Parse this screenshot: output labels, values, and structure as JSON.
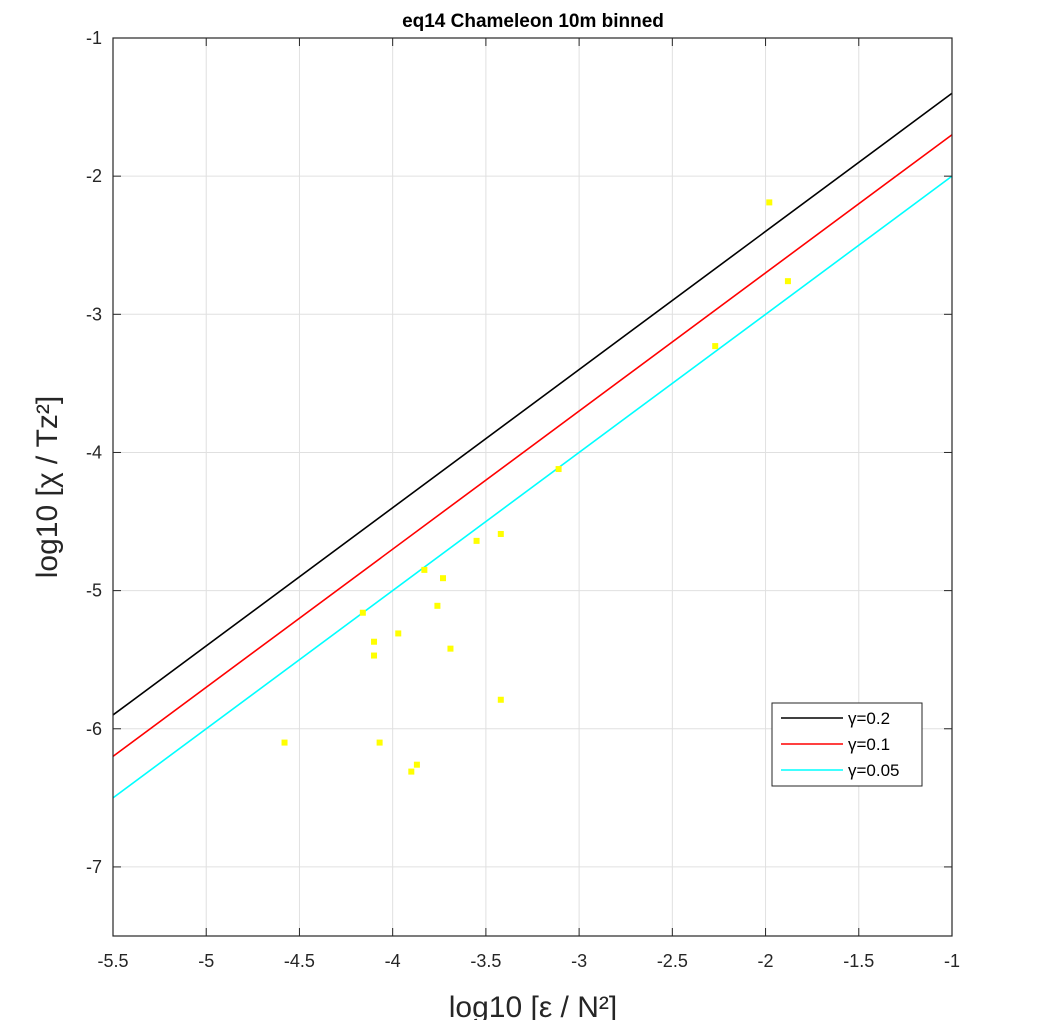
{
  "chart_data": {
    "type": "scatter",
    "title": "eq14 Chameleon 10m binned",
    "xlabel": "log10 [ε / N²]",
    "ylabel": "log10 [χ / Tz²]",
    "xlim": [
      -5.5,
      -1
    ],
    "ylim": [
      -7.5,
      -1
    ],
    "xticks": [
      -5.5,
      -5,
      -4.5,
      -4,
      -3.5,
      -3,
      -2.5,
      -2,
      -1.5,
      -1
    ],
    "xtick_labels": [
      "-5.5",
      "-5",
      "-4.5",
      "-4",
      "-3.5",
      "-3",
      "-2.5",
      "-2",
      "-1.5",
      "-1"
    ],
    "yticks": [
      -7,
      -6,
      -5,
      -4,
      -3,
      -2,
      -1
    ],
    "ytick_labels": [
      "-7",
      "-6",
      "-5",
      "-4",
      "-3",
      "-2",
      "-1"
    ],
    "grid": true,
    "legend_position": "bottom-right",
    "scatter": {
      "color": "#ffff00",
      "points": [
        {
          "x": -1.98,
          "y": -2.19
        },
        {
          "x": -1.88,
          "y": -2.76
        },
        {
          "x": -2.27,
          "y": -3.23
        },
        {
          "x": -3.11,
          "y": -4.12
        },
        {
          "x": -3.42,
          "y": -4.59
        },
        {
          "x": -3.55,
          "y": -4.64
        },
        {
          "x": -3.83,
          "y": -4.85
        },
        {
          "x": -3.73,
          "y": -4.91
        },
        {
          "x": -3.76,
          "y": -5.11
        },
        {
          "x": -4.16,
          "y": -5.16
        },
        {
          "x": -3.97,
          "y": -5.31
        },
        {
          "x": -4.1,
          "y": -5.37
        },
        {
          "x": -3.69,
          "y": -5.42
        },
        {
          "x": -4.1,
          "y": -5.47
        },
        {
          "x": -3.42,
          "y": -5.79
        },
        {
          "x": -4.58,
          "y": -6.1
        },
        {
          "x": -4.07,
          "y": -6.1
        },
        {
          "x": -3.87,
          "y": -6.26
        },
        {
          "x": -3.9,
          "y": -6.31
        }
      ]
    },
    "series": [
      {
        "name": "γ=0.2",
        "color": "#000000",
        "x": [
          -5.5,
          -1
        ],
        "y": [
          -5.9,
          -1.4
        ]
      },
      {
        "name": "γ=0.1",
        "color": "#ff0000",
        "x": [
          -5.5,
          -1
        ],
        "y": [
          -6.2,
          -1.7
        ]
      },
      {
        "name": "γ=0.05",
        "color": "#00ffff",
        "x": [
          -5.5,
          -1
        ],
        "y": [
          -6.5,
          -2.0
        ]
      }
    ]
  }
}
